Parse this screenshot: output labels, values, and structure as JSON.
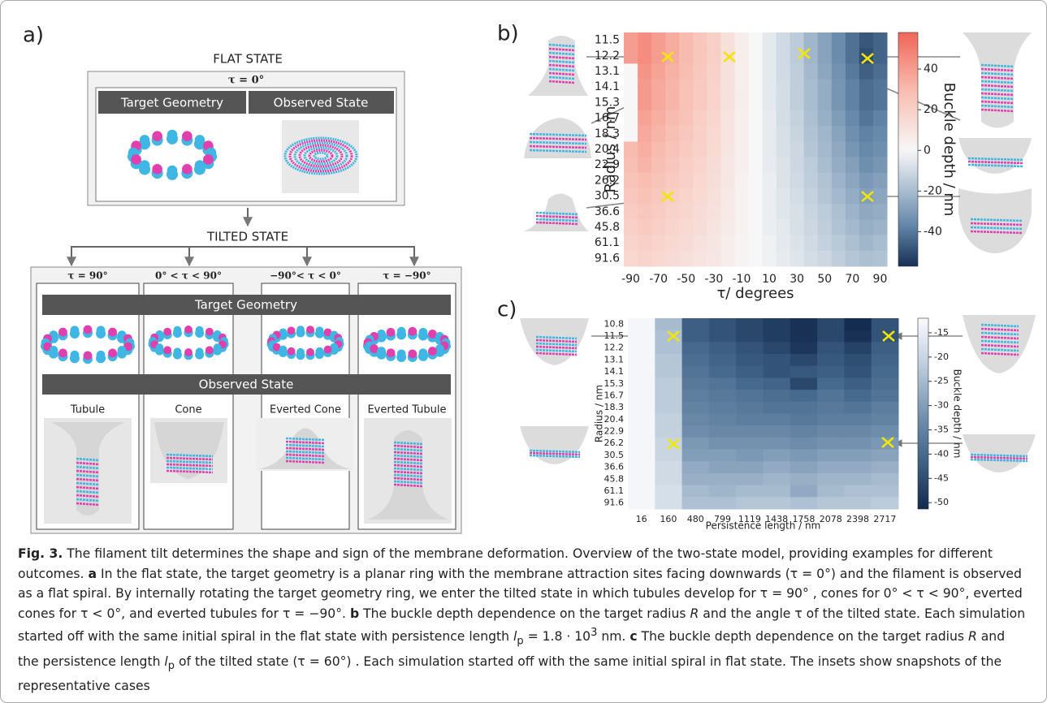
{
  "chart_data": [
    {
      "type": "heatmap",
      "panel_label": "b)",
      "colormap": "diverging",
      "xlabel": "τ/ degrees",
      "ylabel": "Radius / nm",
      "colorbar_label": "Buckle depth / nm",
      "x_categories": [
        -90,
        null,
        -70,
        null,
        -50,
        null,
        -30,
        null,
        -10,
        null,
        10,
        null,
        30,
        null,
        50,
        null,
        70,
        null,
        90
      ],
      "y_categories": [
        11.5,
        12.2,
        13.1,
        14.1,
        15.3,
        16.7,
        18.3,
        20.4,
        22.9,
        26.2,
        30.5,
        36.6,
        45.8,
        61.1,
        91.6
      ],
      "values": [
        [
          40,
          45,
          40,
          35,
          30,
          25,
          20,
          12,
          5,
          0,
          -5,
          -10,
          -15,
          -22,
          -28,
          -35,
          -42,
          -48,
          -45
        ],
        [
          40,
          45,
          40,
          35,
          30,
          25,
          20,
          12,
          5,
          0,
          -5,
          -10,
          -15,
          -22,
          -28,
          -35,
          -42,
          -50,
          -45
        ],
        [
          0,
          43,
          38,
          33,
          29,
          24,
          19,
          11,
          5,
          0,
          -5,
          -10,
          -14,
          -21,
          -27,
          -33,
          -40,
          -46,
          -43
        ],
        [
          0,
          41,
          36,
          32,
          27,
          23,
          18,
          11,
          5,
          0,
          -5,
          -9,
          -14,
          -20,
          -25,
          -32,
          -38,
          -43,
          -41
        ],
        [
          0,
          41,
          36,
          32,
          27,
          23,
          18,
          11,
          5,
          0,
          -5,
          -9,
          -14,
          -20,
          -25,
          -32,
          -38,
          -43,
          -41
        ],
        [
          0,
          38,
          34,
          30,
          26,
          21,
          17,
          10,
          4,
          0,
          -4,
          -9,
          -13,
          -19,
          -24,
          -30,
          -36,
          -41,
          -38
        ],
        [
          0,
          36,
          32,
          28,
          24,
          20,
          16,
          10,
          4,
          0,
          -4,
          -8,
          -12,
          -18,
          -22,
          -28,
          -34,
          -38,
          -36
        ],
        [
          30,
          34,
          30,
          26,
          23,
          19,
          15,
          9,
          4,
          0,
          -4,
          -8,
          -11,
          -17,
          -21,
          -26,
          -32,
          -36,
          -34
        ],
        [
          28,
          32,
          28,
          25,
          21,
          18,
          14,
          8,
          4,
          0,
          -4,
          -7,
          -11,
          -15,
          -20,
          -25,
          -29,
          -34,
          -32
        ],
        [
          26,
          29,
          26,
          23,
          20,
          16,
          13,
          8,
          3,
          0,
          -3,
          -7,
          -10,
          -14,
          -18,
          -23,
          -27,
          -31,
          -29
        ],
        [
          24,
          27,
          24,
          21,
          18,
          15,
          12,
          7,
          3,
          0,
          -3,
          -6,
          -9,
          -13,
          -17,
          -21,
          -25,
          -29,
          -27
        ],
        [
          22,
          25,
          22,
          19,
          17,
          14,
          11,
          7,
          3,
          0,
          -3,
          -6,
          -8,
          -12,
          -15,
          -19,
          -23,
          -26,
          -25
        ],
        [
          20,
          23,
          20,
          18,
          15,
          13,
          10,
          6,
          3,
          0,
          -3,
          -5,
          -8,
          -11,
          -14,
          -18,
          -21,
          -24,
          -23
        ],
        [
          18,
          20,
          18,
          16,
          14,
          11,
          9,
          5,
          2,
          0,
          -2,
          -5,
          -7,
          -10,
          -13,
          -16,
          -19,
          -22,
          -20
        ],
        [
          16,
          18,
          16,
          14,
          12,
          10,
          8,
          5,
          2,
          0,
          -2,
          -4,
          -6,
          -9,
          -11,
          -14,
          -17,
          -19,
          -18
        ]
      ],
      "clim": [
        -57,
        58
      ],
      "cticks": [
        40,
        20,
        0,
        -20,
        -40
      ]
    },
    {
      "type": "heatmap",
      "panel_label": "c)",
      "colormap": "sequential",
      "xlabel": "Persistence length / nm",
      "ylabel": "Radius / nm",
      "colorbar_label": "Buckle depth / nm",
      "x_categories": [
        16,
        160,
        480,
        799,
        1119,
        1438,
        1758,
        2078,
        2398,
        2717
      ],
      "y_categories": [
        10.8,
        11.5,
        12.2,
        13.1,
        14.1,
        15.3,
        16.7,
        18.3,
        20.4,
        22.9,
        26.2,
        30.5,
        36.6,
        45.8,
        61.1,
        91.6
      ],
      "values": [
        [
          -13,
          -25,
          -42,
          -44,
          -46,
          -48,
          -50,
          -46,
          -51,
          -44
        ],
        [
          -13,
          -24,
          -42,
          -44,
          -46,
          -48,
          -50,
          -46,
          -50,
          -44
        ],
        [
          -13,
          -24,
          -40,
          -42,
          -44,
          -46,
          -49,
          -44,
          -47,
          -42
        ],
        [
          -13,
          -23,
          -39,
          -41,
          -43,
          -44,
          -46,
          -43,
          -45,
          -41
        ],
        [
          -13,
          -23,
          -38,
          -40,
          -42,
          -44,
          -43,
          -42,
          -44,
          -40
        ],
        [
          -13,
          -22,
          -37,
          -38,
          -40,
          -41,
          -46,
          -40,
          -42,
          -39
        ],
        [
          -13,
          -22,
          -36,
          -37,
          -38,
          -39,
          -40,
          -38,
          -40,
          -38
        ],
        [
          -13,
          -22,
          -35,
          -36,
          -37,
          -38,
          -38,
          -37,
          -38,
          -36
        ],
        [
          -13,
          -21,
          -34,
          -35,
          -36,
          -36,
          -37,
          -36,
          -36,
          -35
        ],
        [
          -13,
          -21,
          -33,
          -34,
          -34,
          -34,
          -35,
          -34,
          -34,
          -33
        ],
        [
          -13,
          -20,
          -31,
          -32,
          -32,
          -32,
          -33,
          -32,
          -32,
          -31
        ],
        [
          -13,
          -20,
          -30,
          -30,
          -31,
          -30,
          -31,
          -30,
          -30,
          -29
        ],
        [
          -13,
          -19,
          -28,
          -29,
          -29,
          -28,
          -29,
          -28,
          -28,
          -27
        ],
        [
          -13,
          -19,
          -27,
          -27,
          -27,
          -26,
          -27,
          -26,
          -26,
          -25
        ],
        [
          -13,
          -18,
          -25,
          -26,
          -25,
          -25,
          -28,
          -25,
          -24,
          -24
        ],
        [
          -13,
          -18,
          -24,
          -24,
          -23,
          -23,
          -24,
          -23,
          -23,
          -22
        ]
      ],
      "clim": [
        -51.3,
        -12
      ],
      "cticks": [
        -15,
        -20,
        -25,
        -30,
        -35,
        -40,
        -45,
        -50
      ]
    }
  ],
  "panel_a": {
    "label": "a)",
    "flat": {
      "title": "FLAT STATE",
      "condition": "τ = 0°",
      "headers": [
        "Target Geometry",
        "Observed State"
      ]
    },
    "tilted": {
      "title": "TILTED STATE",
      "conditions": [
        "τ = 90°",
        "0° < τ < 90°",
        "−90°< τ < 0°",
        "τ = −90°"
      ],
      "target_header": "Target Geometry",
      "observed_header": "Observed State",
      "outcomes": [
        "Tubule",
        "Cone",
        "Everted Cone",
        "Everted Tubule"
      ]
    }
  },
  "caption": [
    "Fig. 3.",
    " The filament tilt determines the shape and sign of the membrane deformation. Overview of the two-state model, providing examples for different outcomes. ",
    "a",
    " In the flat state, the target geometry is a planar ring with the membrane attraction sites facing downwards (τ = 0°) and the filament is observed as a flat spiral. By internally rotating the target geometry ring, we enter the tilted state in which tubules develop for τ = 90° , cones for 0° < τ < 90°, everted cones for τ < 0°, and everted tubules for τ = −90°. ",
    "b",
    " The buckle depth dependence on the target radius ",
    "R",
    " and the angle τ of the tilted state. Each simulation started off with the same initial spiral in the flat state with persistence length ",
    "l",
    "p",
    " = 1.8 · 10",
    "3",
    " nm. ",
    "c",
    " The buckle depth dependence on the target radius ",
    "R",
    " and the persistence length ",
    "l",
    "p",
    " of the tilted state (τ = 60°) . Each simulation started off with the same initial spiral in flat state. The insets show snapshots of the representative cases"
  ]
}
